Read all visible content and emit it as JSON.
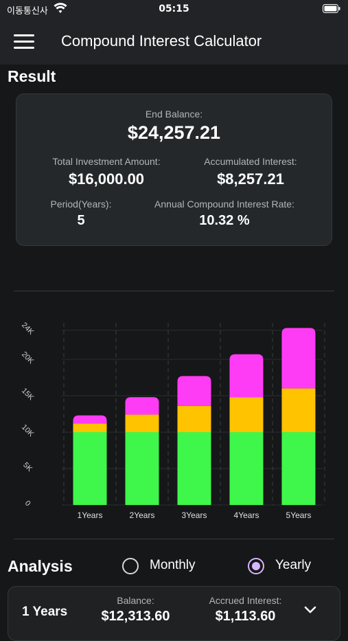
{
  "status_bar": {
    "carrier": "이동통신사",
    "time": "05:15"
  },
  "app_bar": {
    "title": "Compound Interest Calculator"
  },
  "result": {
    "heading": "Result",
    "end_balance_label": "End Balance:",
    "end_balance": "$24,257.21",
    "total_investment_label": "Total Investment Amount:",
    "total_investment": "$16,000.00",
    "accumulated_interest_label": "Accumulated Interest:",
    "accumulated_interest": "$8,257.21",
    "period_label": "Period(Years):",
    "period": "5",
    "rate_label": "Annual Compound Interest Rate:",
    "rate": "10.32 %"
  },
  "chart_data": {
    "type": "bar",
    "stacked": true,
    "categories": [
      "1Years",
      "2Years",
      "3Years",
      "4Years",
      "5Years"
    ],
    "series": [
      {
        "color": "#3ef74a",
        "values": [
          10000,
          10000,
          10000,
          10000,
          10000
        ]
      },
      {
        "color": "#ffc300",
        "values": [
          1200,
          2400,
          3600,
          4800,
          6000
        ]
      },
      {
        "color": "#ff3cf5",
        "values": [
          1100,
          2400,
          4100,
          5900,
          8300
        ]
      }
    ],
    "y_ticks": [
      "0",
      "5K",
      "10K",
      "15K",
      "20K",
      "24K"
    ],
    "y_tick_values": [
      0,
      5000,
      10000,
      15000,
      20000,
      24000
    ],
    "ylim": [
      0,
      25000
    ],
    "grid": true
  },
  "analysis": {
    "heading": "Analysis",
    "options": {
      "monthly": "Monthly",
      "yearly": "Yearly",
      "selected": "Yearly"
    },
    "row": {
      "period": "1 Years",
      "balance_label": "Balance:",
      "balance": "$12,313.60",
      "accrued_label": "Accrued Interest:",
      "accrued": "$1,113.60"
    }
  }
}
